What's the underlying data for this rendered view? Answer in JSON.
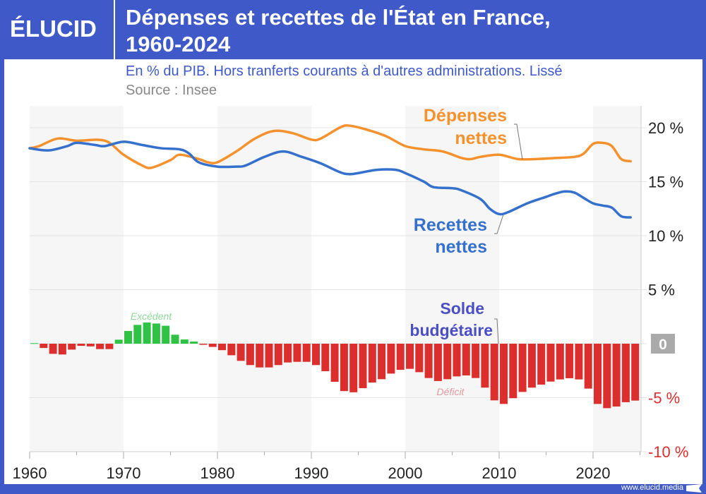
{
  "header": {
    "logo": "ÉLUCID",
    "title_line1": "Dépenses et recettes de l'État en France,",
    "title_line2": "1960-2024",
    "subtitle": "En % du PIB. Hors tranferts courants à d'autres administrations. Lissé",
    "source": "Source : Insee"
  },
  "footer": {
    "url": "www.elucid.media"
  },
  "colors": {
    "brand": "#3f5ac8",
    "depenses": "#f5922e",
    "recettes": "#3570cc",
    "deficit": "#dd2e2e",
    "excedent": "#2fc244",
    "solde_label": "#4a4fc4"
  },
  "chart_data": {
    "type": "line+bar",
    "x_ticks": [
      "1960",
      "1970",
      "1980",
      "1990",
      "2000",
      "2010",
      "2020"
    ],
    "xlim": [
      1960,
      2025
    ],
    "ylim": [
      -10,
      22
    ],
    "y_ticks": [
      {
        "value": 20,
        "label": "20 %"
      },
      {
        "value": 15,
        "label": "15 %"
      },
      {
        "value": 10,
        "label": "10 %"
      },
      {
        "value": 5,
        "label": "5 %"
      },
      {
        "value": 0,
        "label": "0"
      },
      {
        "value": -5,
        "label": "-5 %"
      },
      {
        "value": -10,
        "label": "-10 %"
      }
    ],
    "grid": true,
    "annotations": {
      "excedent": "Excédent",
      "deficit": "Déficit"
    },
    "series": [
      {
        "name": "Dépenses nettes",
        "label_line1": "Dépenses",
        "label_line2": "nettes",
        "type": "line",
        "x": [
          1960,
          1961,
          1963,
          1965,
          1968,
          1970,
          1972,
          1973,
          1975,
          1976,
          1978,
          1979,
          1980,
          1982,
          1984,
          1986,
          1988,
          1990,
          1991,
          1993,
          1994,
          1996,
          1998,
          2000,
          2002,
          2004,
          2006,
          2007,
          2008,
          2010,
          2012,
          2014,
          2016,
          2018,
          2019,
          2020,
          2021,
          2022,
          2023,
          2024
        ],
        "values": [
          18.1,
          18.3,
          19.0,
          18.8,
          18.8,
          17.5,
          16.5,
          16.3,
          17.0,
          17.5,
          17.1,
          16.8,
          16.8,
          17.8,
          19.0,
          19.7,
          19.5,
          18.9,
          19.0,
          20.0,
          20.2,
          19.8,
          19.2,
          18.3,
          18.0,
          17.8,
          17.2,
          17.1,
          17.3,
          17.5,
          17.1,
          17.1,
          17.2,
          17.3,
          17.6,
          18.5,
          18.6,
          18.3,
          17.1,
          16.9
        ]
      },
      {
        "name": "Recettes nettes",
        "label_line1": "Recettes",
        "label_line2": "nettes",
        "type": "line",
        "x": [
          1960,
          1962,
          1964,
          1965,
          1967,
          1968,
          1970,
          1972,
          1974,
          1976,
          1977,
          1978,
          1980,
          1982,
          1983,
          1985,
          1987,
          1989,
          1991,
          1993,
          1994,
          1995,
          1997,
          1999,
          2000,
          2002,
          2003,
          2005,
          2006,
          2008,
          2009,
          2010,
          2011,
          2013,
          2015,
          2016,
          2017,
          2018,
          2019,
          2020,
          2021,
          2022,
          2023,
          2024
        ],
        "values": [
          18.1,
          17.9,
          18.3,
          18.6,
          18.4,
          18.3,
          18.7,
          18.4,
          18.1,
          18.0,
          17.6,
          16.8,
          16.4,
          16.4,
          16.5,
          17.3,
          17.8,
          17.3,
          16.7,
          15.9,
          15.7,
          15.8,
          16.1,
          16.1,
          15.8,
          15.0,
          14.5,
          14.4,
          14.2,
          13.4,
          12.5,
          12.0,
          12.2,
          13.0,
          13.6,
          13.9,
          14.1,
          14.0,
          13.5,
          13.0,
          12.8,
          12.6,
          11.8,
          11.7
        ]
      },
      {
        "name": "Solde budgétaire",
        "label_line1": "Solde",
        "label_line2": "budgétaire",
        "type": "bar",
        "x": [
          1960,
          1961,
          1962,
          1963,
          1964,
          1965,
          1966,
          1967,
          1968,
          1969,
          1970,
          1971,
          1972,
          1973,
          1974,
          1975,
          1976,
          1977,
          1978,
          1979,
          1980,
          1981,
          1982,
          1983,
          1984,
          1985,
          1986,
          1987,
          1988,
          1989,
          1990,
          1991,
          1992,
          1993,
          1994,
          1995,
          1996,
          1997,
          1998,
          1999,
          2000,
          2001,
          2002,
          2003,
          2004,
          2005,
          2006,
          2007,
          2008,
          2009,
          2010,
          2011,
          2012,
          2013,
          2014,
          2015,
          2016,
          2017,
          2018,
          2019,
          2020,
          2021,
          2022,
          2023,
          2024
        ],
        "values": [
          0.05,
          -0.4,
          -0.94,
          -1.0,
          -0.55,
          -0.2,
          -0.25,
          -0.5,
          -0.5,
          0.37,
          1.18,
          1.74,
          1.96,
          1.87,
          1.66,
          0.83,
          0.39,
          0.2,
          -0.1,
          -0.3,
          -0.6,
          -1.07,
          -1.59,
          -1.98,
          -2.2,
          -2.2,
          -1.98,
          -1.74,
          -1.68,
          -1.68,
          -1.98,
          -2.55,
          -3.53,
          -4.39,
          -4.5,
          -4.12,
          -3.6,
          -3.29,
          -2.77,
          -2.42,
          -2.33,
          -2.64,
          -3.18,
          -3.46,
          -3.29,
          -3.03,
          -2.94,
          -3.18,
          -4.07,
          -5.25,
          -5.58,
          -5.05,
          -4.47,
          -4.07,
          -3.79,
          -3.51,
          -3.31,
          -3.2,
          -3.31,
          -4.16,
          -5.58,
          -5.97,
          -5.82,
          -5.42,
          -5.27
        ]
      }
    ]
  }
}
